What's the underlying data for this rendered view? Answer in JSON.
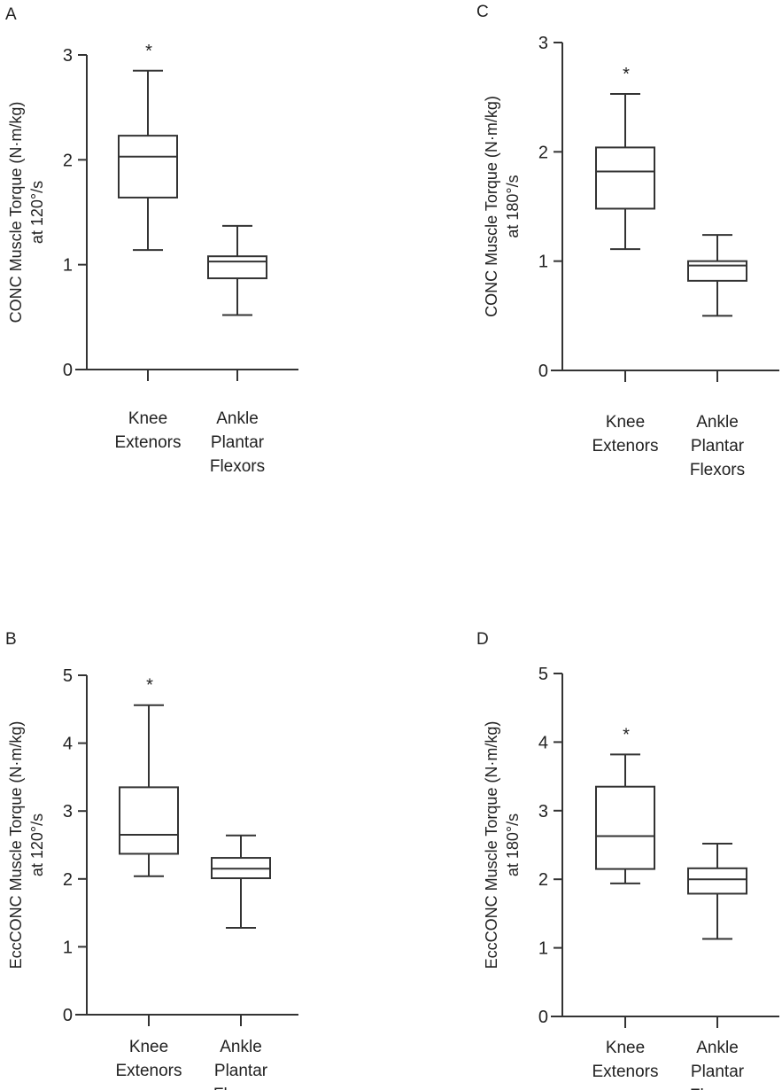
{
  "chart_data": [
    {
      "type": "box",
      "panel": "A",
      "ylabel_line1": "CONC Muscle Torque (N·m/kg)",
      "ylabel_line2": "at 120°/s",
      "ylim": [
        0,
        3
      ],
      "yticks": [
        0,
        1,
        2,
        3
      ],
      "categories": [
        [
          "Knee",
          "Extenors"
        ],
        [
          "Ankle",
          "Plantar",
          "Flexors"
        ]
      ],
      "boxes": [
        {
          "min": 1.14,
          "q1": 1.64,
          "median": 2.03,
          "q3": 2.23,
          "max": 2.85,
          "annotation": "*"
        },
        {
          "min": 0.52,
          "q1": 0.87,
          "median": 1.03,
          "q3": 1.08,
          "max": 1.37,
          "annotation": ""
        }
      ]
    },
    {
      "type": "box",
      "panel": "B",
      "ylabel_line1": "EccCONC Muscle Torque (N·m/kg)",
      "ylabel_line2": "at 120°/s",
      "ylim": [
        0,
        5
      ],
      "yticks": [
        0,
        1,
        2,
        3,
        4,
        5
      ],
      "categories": [
        [
          "Knee",
          "Extenors"
        ],
        [
          "Ankle",
          "Plantar",
          "Flexors"
        ]
      ],
      "boxes": [
        {
          "min": 2.04,
          "q1": 2.37,
          "median": 2.65,
          "q3": 3.35,
          "max": 4.56,
          "annotation": "*"
        },
        {
          "min": 1.28,
          "q1": 2.01,
          "median": 2.15,
          "q3": 2.31,
          "max": 2.64,
          "annotation": ""
        }
      ]
    },
    {
      "type": "box",
      "panel": "C",
      "ylabel_line1": "CONC Muscle Torque (N·m/kg)",
      "ylabel_line2": "at 180°/s",
      "ylim": [
        0,
        3
      ],
      "yticks": [
        0,
        1,
        2,
        3
      ],
      "categories": [
        [
          "Knee",
          "Extenors"
        ],
        [
          "Ankle",
          "Plantar",
          "Flexors"
        ]
      ],
      "boxes": [
        {
          "min": 1.11,
          "q1": 1.48,
          "median": 1.82,
          "q3": 2.04,
          "max": 2.53,
          "annotation": "*"
        },
        {
          "min": 0.5,
          "q1": 0.82,
          "median": 0.96,
          "q3": 1.0,
          "max": 1.24,
          "annotation": ""
        }
      ]
    },
    {
      "type": "box",
      "panel": "D",
      "ylabel_line1": "EccCONC Muscle Torque (N·m/kg)",
      "ylabel_line2": "at 180°/s",
      "ylim": [
        0,
        5
      ],
      "yticks": [
        0,
        1,
        2,
        3,
        4,
        5
      ],
      "categories": [
        [
          "Knee",
          "Extenors"
        ],
        [
          "Ankle",
          "Plantar",
          "Flexors"
        ]
      ],
      "boxes": [
        {
          "min": 1.94,
          "q1": 2.15,
          "median": 2.63,
          "q3": 3.35,
          "max": 3.82,
          "annotation": "*"
        },
        {
          "min": 1.13,
          "q1": 1.79,
          "median": 2.0,
          "q3": 2.16,
          "max": 2.52,
          "annotation": ""
        }
      ]
    }
  ]
}
